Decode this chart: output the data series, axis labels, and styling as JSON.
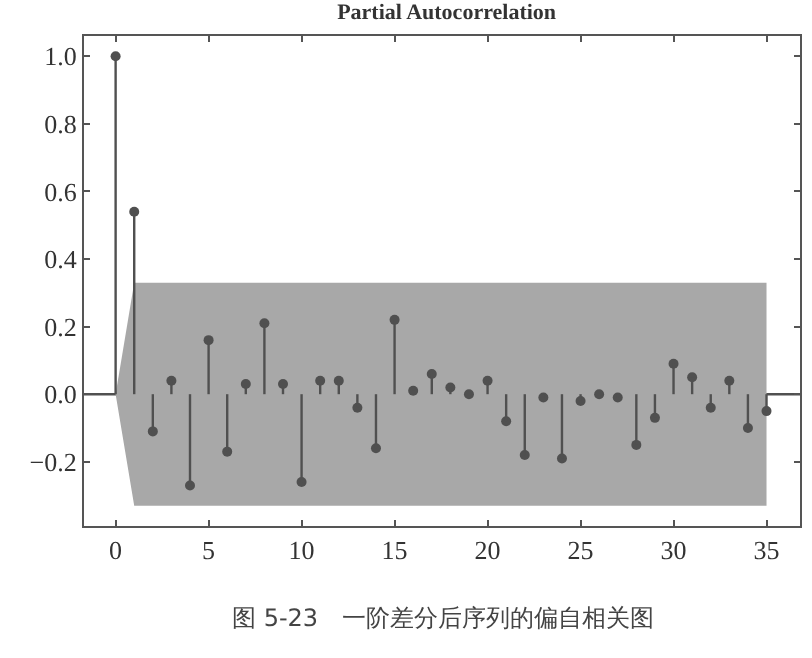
{
  "chart_data": {
    "type": "lollipop",
    "title": "Partial Autocorrelation",
    "annotations": [
      "图 5-23　一阶差分后序列的偏自相关图"
    ],
    "x": [
      0,
      1,
      2,
      3,
      4,
      5,
      6,
      7,
      8,
      9,
      10,
      11,
      12,
      13,
      14,
      15,
      16,
      17,
      18,
      19,
      20,
      21,
      22,
      23,
      24,
      25,
      26,
      27,
      28,
      29,
      30,
      31,
      32,
      33,
      34,
      35
    ],
    "values": [
      1.0,
      0.54,
      -0.11,
      0.04,
      -0.27,
      0.16,
      -0.17,
      0.03,
      0.21,
      0.03,
      -0.26,
      0.04,
      0.04,
      -0.04,
      -0.16,
      0.22,
      0.01,
      0.06,
      0.02,
      0.0,
      0.04,
      -0.08,
      -0.18,
      -0.01,
      -0.19,
      -0.02,
      0.0,
      -0.01,
      -0.15,
      -0.07,
      0.09,
      0.05,
      -0.04,
      0.04,
      -0.1,
      -0.05
    ],
    "color": "#505050",
    "marker": "circle",
    "grid": false,
    "bands": [
      {
        "axis": "y",
        "from": -0.33,
        "to": 0.33,
        "color": "#a8a8a8"
      }
    ],
    "ref_lines": [
      {
        "axis": "y",
        "value": 0,
        "color": "#505050"
      }
    ],
    "xlim": [
      -1.7,
      36.8
    ],
    "xticks": [
      0,
      5,
      10,
      15,
      20,
      25,
      30,
      35
    ],
    "ylim": [
      -0.39,
      1.06
    ],
    "yticks": [
      {
        "value": -0.2,
        "label": "−0.2"
      },
      {
        "value": 0,
        "label": "0.0"
      },
      {
        "value": 0.2,
        "label": "0.2"
      },
      {
        "value": 0.4,
        "label": "0.4"
      },
      {
        "value": 0.6,
        "label": "0.6"
      },
      {
        "value": 0.8,
        "label": "0.8"
      },
      {
        "value": 1,
        "label": "1.0"
      }
    ]
  }
}
